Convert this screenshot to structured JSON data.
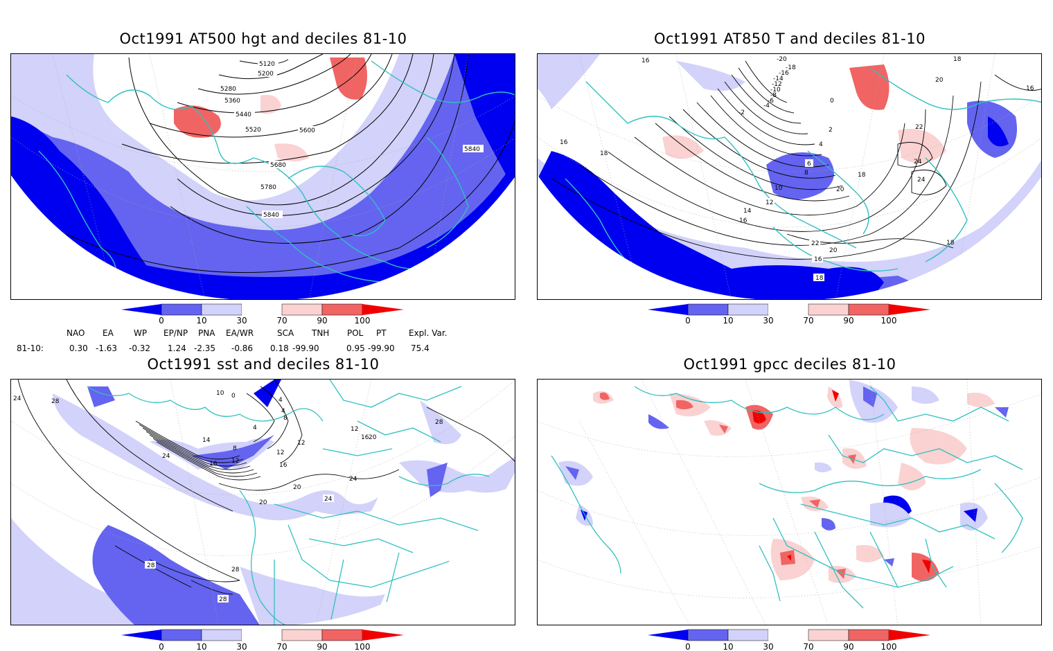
{
  "panels": [
    {
      "id": "p1",
      "title": "Oct1991 AT500 hgt and deciles 81-10",
      "contour_labels": [
        "5120",
        "5200",
        "5280",
        "5360",
        "5440",
        "5520",
        "5600",
        "5680",
        "5780",
        "5840",
        "5840"
      ]
    },
    {
      "id": "p2",
      "title": "Oct1991 AT850 T and deciles 81-10",
      "contour_labels": [
        "16",
        "-20",
        "-18",
        "-16",
        "-14",
        "-12",
        "-10",
        "-8",
        "-6",
        "-4",
        "-2",
        "0",
        "2",
        "4",
        "6",
        "8",
        "10",
        "12",
        "14",
        "16",
        "16",
        "18",
        "18",
        "20",
        "20",
        "22",
        "24",
        "24",
        "16",
        "18",
        "20",
        "22",
        "18",
        "16",
        "18"
      ]
    },
    {
      "id": "p3",
      "title": "Oct1991 sst and deciles 81-10",
      "contour_labels": [
        "24",
        "28",
        "0",
        "4",
        "10",
        "4",
        "8",
        "4",
        "8",
        "12",
        "12",
        "14",
        "16",
        "12",
        "16",
        "20",
        "20",
        "24",
        "24",
        "28",
        "12",
        "16",
        "20",
        "24",
        "28",
        "28",
        "28"
      ]
    },
    {
      "id": "p4",
      "title": "Oct1991 gpcc deciles 81-10",
      "contour_labels": []
    }
  ],
  "colorbar": {
    "tick_labels": [
      "0",
      "10",
      "30",
      "70",
      "90",
      "100"
    ],
    "colors": [
      "#0000f0",
      "#6464f0",
      "#d2d2fa",
      "#ffffff",
      "#fad2d2",
      "#f06464",
      "#f00000"
    ]
  },
  "teleconnection": {
    "headers": [
      "NAO",
      "EA",
      "WP",
      "EP/NP",
      "PNA",
      "EA/WR",
      "SCA",
      "TNH",
      "POL",
      "PT",
      "Expl. Var."
    ],
    "row_label": "81-10:",
    "values": [
      "0.30",
      "-1.63",
      "-0.32",
      "1.24",
      "-2.35",
      "-0.86",
      "0.18",
      "-99.90",
      "0.95",
      "-99.90",
      "75.4"
    ]
  },
  "colors": {
    "coast": "#30c0c0",
    "contour": "#000000",
    "deep_blue": "#0000f0",
    "mid_blue": "#6464f0",
    "light_blue": "#d2d2fa",
    "light_red": "#fad2d2",
    "mid_red": "#f06464",
    "deep_red": "#f00000"
  }
}
